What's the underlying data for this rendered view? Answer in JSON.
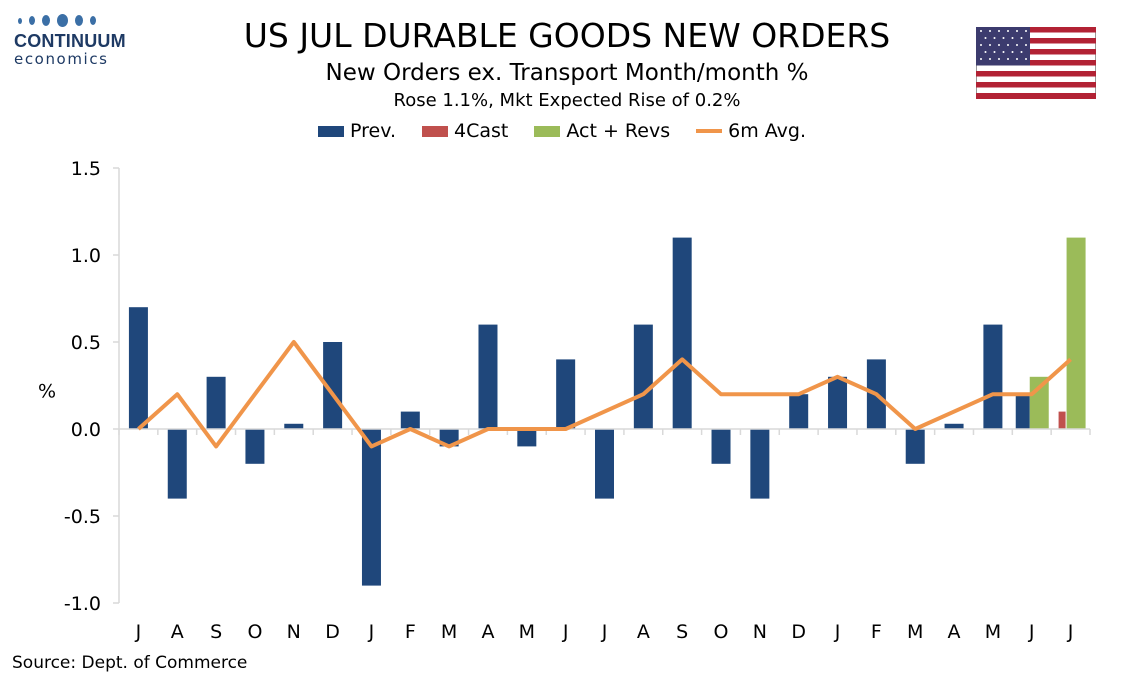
{
  "logo": {
    "name": "CONTINUUM",
    "sub": "economics"
  },
  "title": "US JUL DURABLE GOODS NEW ORDERS",
  "subtitle": "New Orders ex. Transport Month/month %",
  "subtitle2": "Rose 1.1%, Mkt Expected Rise of 0.2%",
  "source": "Source: Dept. of Commerce",
  "colors": {
    "prev": "#1f477b",
    "fcast": "#c0504d",
    "act": "#9bbb59",
    "avg": "#f0954a"
  },
  "legend": {
    "prev": "Prev.",
    "fcast": "4Cast",
    "act": "Act + Revs",
    "avg": "6m Avg."
  },
  "chart_data": {
    "type": "bar",
    "ylabel": "%",
    "ylim": [
      -1.0,
      1.5
    ],
    "yticks": [
      "1.5",
      "1.0",
      "0.5",
      "0.0",
      "-0.5",
      "-1.0"
    ],
    "categories": [
      "J",
      "A",
      "S",
      "O",
      "N",
      "D",
      "J",
      "F",
      "M",
      "A",
      "M",
      "J",
      "J",
      "A",
      "S",
      "O",
      "N",
      "D",
      "J",
      "F",
      "M",
      "A",
      "M",
      "J",
      "J"
    ],
    "series": [
      {
        "name": "Prev.",
        "values": [
          0.7,
          -0.4,
          0.3,
          -0.2,
          0.03,
          0.5,
          -0.9,
          0.1,
          -0.1,
          0.6,
          -0.1,
          0.4,
          -0.4,
          0.6,
          1.1,
          -0.2,
          -0.4,
          0.2,
          0.3,
          0.4,
          -0.2,
          0.03,
          0.6,
          0.2,
          null
        ]
      },
      {
        "name": "4Cast",
        "values": [
          null,
          null,
          null,
          null,
          null,
          null,
          null,
          null,
          null,
          null,
          null,
          null,
          null,
          null,
          null,
          null,
          null,
          null,
          null,
          null,
          null,
          null,
          null,
          null,
          0.1
        ]
      },
      {
        "name": "Act + Revs",
        "values": [
          null,
          null,
          null,
          null,
          null,
          null,
          null,
          null,
          null,
          null,
          null,
          null,
          null,
          null,
          null,
          null,
          null,
          null,
          null,
          null,
          null,
          null,
          null,
          0.3,
          1.1
        ]
      },
      {
        "name": "6m Avg.",
        "values": [
          0.0,
          0.2,
          -0.1,
          0.2,
          0.5,
          0.2,
          -0.1,
          0.0,
          -0.1,
          0.0,
          0.0,
          0.0,
          0.1,
          0.2,
          0.4,
          0.2,
          0.2,
          0.2,
          0.3,
          0.2,
          0.0,
          0.1,
          0.2,
          0.2,
          0.4
        ]
      }
    ],
    "grid": false,
    "legend_position": "top"
  }
}
